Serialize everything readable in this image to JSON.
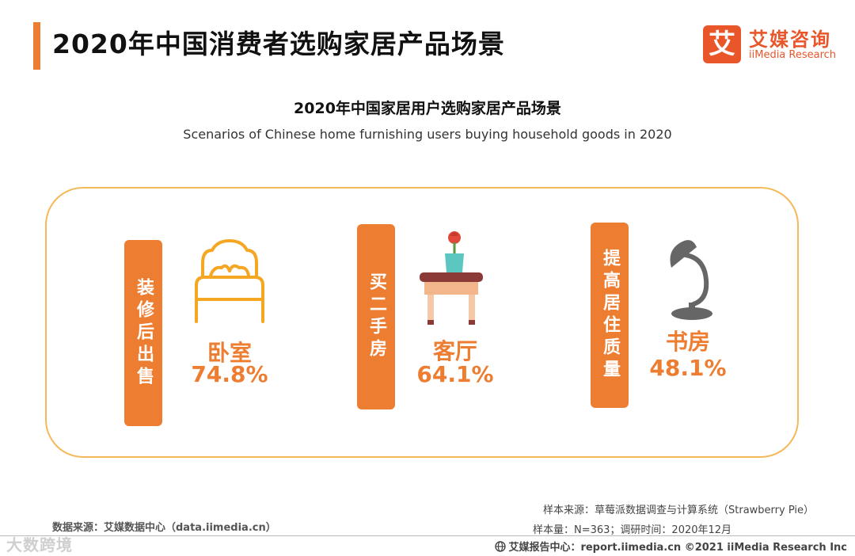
{
  "header": {
    "title": "2020年中国消费者选购家居产品场景",
    "logo_mark": "艾",
    "logo_cn": "艾媒咨询",
    "logo_en": "iiMedia Research"
  },
  "chart_data": {
    "type": "table",
    "title": "2020年中国家居用户选购家居产品场景",
    "subtitle": "Scenarios of Chinese home furnishing users buying household goods in 2020",
    "items": [
      {
        "scenario": "装修后出售",
        "room": "卧室",
        "value": 74.8,
        "label": "74.8%"
      },
      {
        "scenario": "买二手房",
        "room": "客厅",
        "value": 64.1,
        "label": "64.1%"
      },
      {
        "scenario": "提高居住质量",
        "room": "书房",
        "value": 48.1,
        "label": "48.1%"
      }
    ]
  },
  "icons": [
    "bed-icon",
    "side-table-vase-icon",
    "desk-lamp-icon",
    "globe-icon"
  ],
  "colors": {
    "accent": "#ed7d31",
    "frame": "#f5b85a",
    "brand": "#e8562a"
  },
  "footer": {
    "source": "数据来源：艾媒数据中心（data.iimedia.cn）",
    "sample_source": "样本来源：草莓派数据调查与计算系统（Strawberry Pie）",
    "sample_size": "样本量：N=363；调研时间：2020年12月",
    "report": "艾媒报告中心：report.iimedia.cn  ©2021  iiMedia Research  Inc",
    "watermark": "大数跨境"
  }
}
